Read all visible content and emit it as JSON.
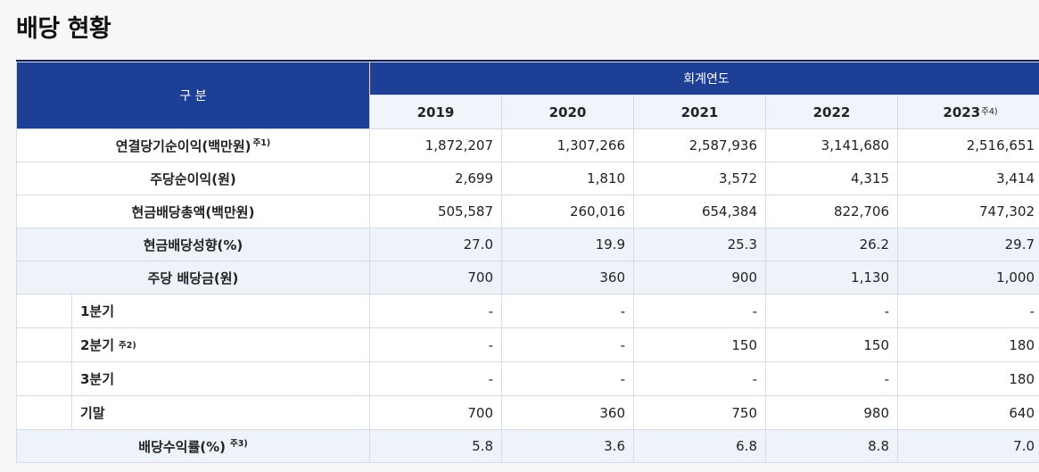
{
  "title": "배당 현황",
  "header": {
    "category_label": "구 분",
    "period_label": "회계연도",
    "years": [
      "2019",
      "2020",
      "2021",
      "2022",
      "2023"
    ],
    "last_year_note": "주4)"
  },
  "rows": [
    {
      "label": "연결당기순이익(백만원)",
      "note": "주1)",
      "values": [
        "1,872,207",
        "1,307,266",
        "2,587,936",
        "3,141,680",
        "2,516,651"
      ]
    },
    {
      "label": "주당순이익(원)",
      "note": "",
      "values": [
        "2,699",
        "1,810",
        "3,572",
        "4,315",
        "3,414"
      ]
    },
    {
      "label": "현금배당총액(백만원)",
      "note": "",
      "values": [
        "505,587",
        "260,016",
        "654,384",
        "822,706",
        "747,302"
      ]
    },
    {
      "label": "현금배당성향(%)",
      "note": "",
      "values": [
        "27.0",
        "19.9",
        "25.3",
        "26.2",
        "29.7"
      ]
    },
    {
      "label": "주당 배당금(원)",
      "note": "",
      "values": [
        "700",
        "360",
        "900",
        "1,130",
        "1,000"
      ]
    },
    {
      "label": "1분기",
      "note": "",
      "values": [
        "-",
        "-",
        "-",
        "-",
        "-"
      ]
    },
    {
      "label": "2분기",
      "note": "주2)",
      "values": [
        "-",
        "-",
        "150",
        "150",
        "180"
      ]
    },
    {
      "label": "3분기",
      "note": "",
      "values": [
        "-",
        "-",
        "-",
        "-",
        "180"
      ]
    },
    {
      "label": "기말",
      "note": "",
      "values": [
        "700",
        "360",
        "750",
        "980",
        "640"
      ]
    },
    {
      "label": "배당수익률(%)",
      "note": "주3)",
      "values": [
        "5.8",
        "3.6",
        "6.8",
        "8.8",
        "7.0"
      ]
    }
  ]
}
